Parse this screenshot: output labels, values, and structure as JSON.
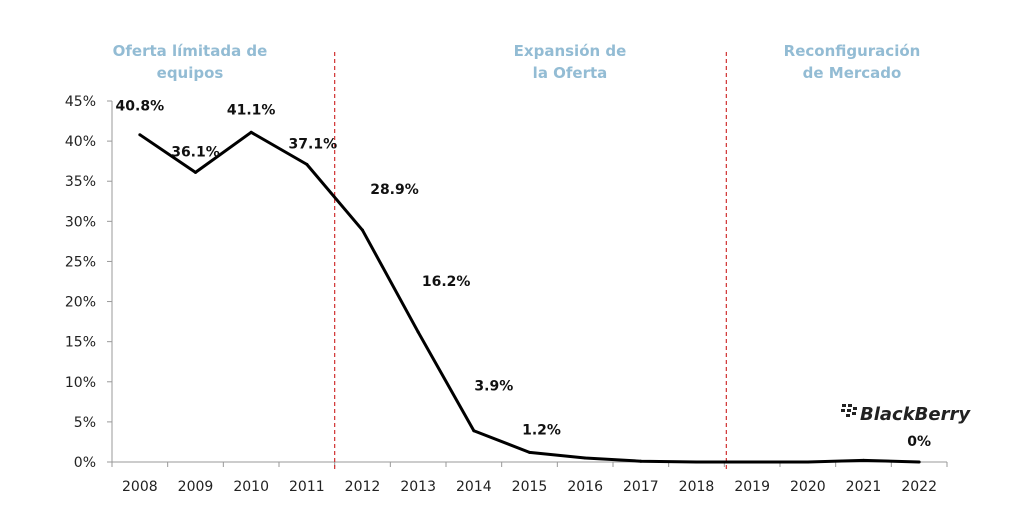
{
  "chart_data": {
    "type": "line",
    "title": "",
    "xlabel": "",
    "ylabel": "",
    "categories": [
      "2008",
      "2009",
      "2010",
      "2011",
      "2012",
      "2013",
      "2014",
      "2015",
      "2016",
      "2017",
      "2018",
      "2019",
      "2020",
      "2021",
      "2022"
    ],
    "series": [
      {
        "values": [
          40.8,
          36.1,
          41.1,
          37.1,
          28.9,
          16.2,
          3.9,
          1.2,
          0.5,
          0.1,
          0,
          0,
          0,
          0.2,
          0
        ],
        "color": "#000000"
      }
    ],
    "data_labels": [
      {
        "index": 0,
        "text": "40.8%"
      },
      {
        "index": 1,
        "text": "36.1%"
      },
      {
        "index": 2,
        "text": "41.1%"
      },
      {
        "index": 3,
        "text": "37.1%"
      },
      {
        "index": 4,
        "text": "28.9%"
      },
      {
        "index": 5,
        "text": "16.2%"
      },
      {
        "index": 6,
        "text": "3.9%"
      },
      {
        "index": 7,
        "text": "1.2%"
      },
      {
        "index": 14,
        "text": "0%"
      }
    ],
    "ylim": [
      0,
      45
    ],
    "yticks": [
      "0%",
      "5%",
      "10%",
      "15%",
      "20%",
      "25%",
      "30%",
      "35%",
      "40%",
      "45%"
    ],
    "grid": false,
    "legend": "none",
    "phase_dividers": [
      {
        "after": "2011",
        "color": "#d03030",
        "style": "dashed"
      },
      {
        "after": "2018",
        "color": "#d03030",
        "style": "dashed"
      }
    ],
    "phases": [
      {
        "lines": [
          "Oferta límitada de",
          "equipos"
        ]
      },
      {
        "lines": [
          "Expansión de",
          "la Oferta"
        ]
      },
      {
        "lines": [
          "Reconfiguración",
          "de Mercado"
        ]
      }
    ],
    "phase_color": "#93bcd4",
    "logo": "BlackBerry"
  }
}
